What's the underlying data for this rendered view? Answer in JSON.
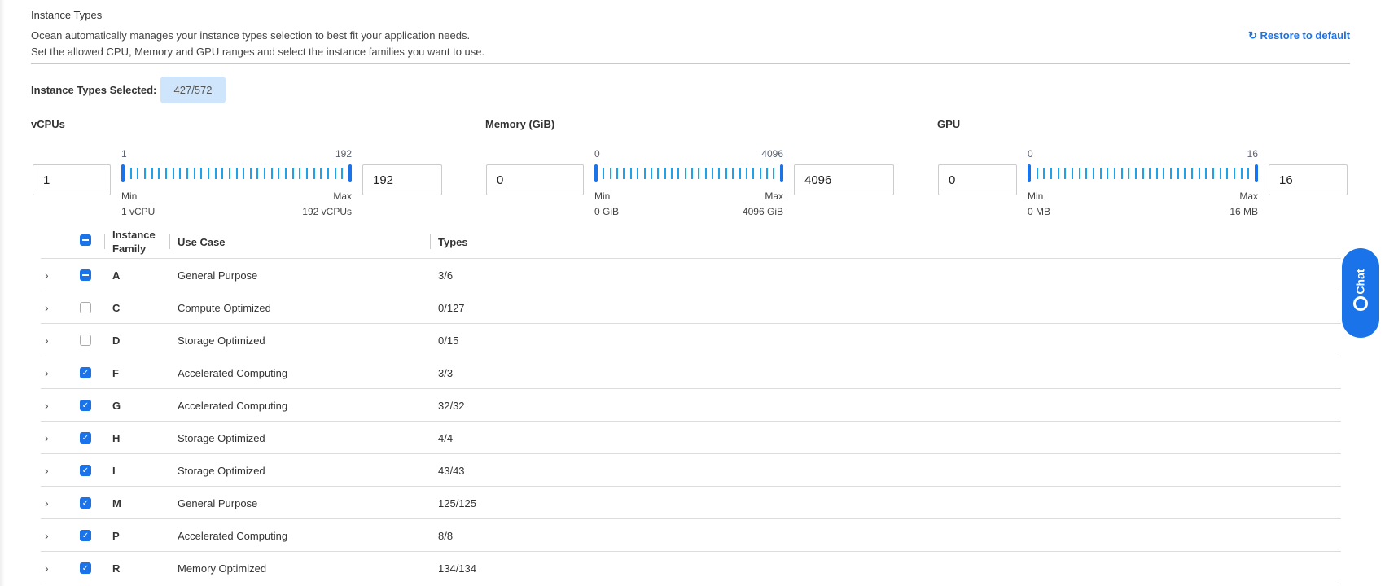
{
  "header": {
    "title": "Instance Types",
    "description": [
      "Ocean automatically manages your instance types selection to best fit your application needs.",
      "Set the allowed CPU, Memory and GPU ranges and select the instance families you want to use."
    ],
    "restore_label": "Restore to default",
    "restore_icon": "refresh-icon"
  },
  "selected": {
    "label": "Instance Types Selected:",
    "value": "427/572"
  },
  "ranges": [
    {
      "label": "vCPUs",
      "min_input": "1",
      "max_input": "192",
      "min_value": "1",
      "max_value": "192",
      "min_label": "Min",
      "max_label": "Max",
      "min_unit": "1 vCPU",
      "max_unit": "192 vCPUs"
    },
    {
      "label": "Memory (GiB)",
      "min_input": "0",
      "max_input": "4096",
      "min_value": "0",
      "max_value": "4096",
      "min_label": "Min",
      "max_label": "Max",
      "min_unit": "0 GiB",
      "max_unit": "4096 GiB"
    },
    {
      "label": "GPU",
      "min_input": "0",
      "max_input": "16",
      "min_value": "0",
      "max_value": "16",
      "min_label": "Min",
      "max_label": "Max",
      "min_unit": "0 MB",
      "max_unit": "16 MB"
    }
  ],
  "table": {
    "headers": {
      "family": "Instance Family",
      "use_case": "Use Case",
      "types": "Types"
    },
    "header_checkbox": "mixed",
    "rows": [
      {
        "family": "A",
        "use_case": "General Purpose",
        "types": "3/6",
        "state": "mixed"
      },
      {
        "family": "C",
        "use_case": "Compute Optimized",
        "types": "0/127",
        "state": "off"
      },
      {
        "family": "D",
        "use_case": "Storage Optimized",
        "types": "0/15",
        "state": "off"
      },
      {
        "family": "F",
        "use_case": "Accelerated Computing",
        "types": "3/3",
        "state": "on"
      },
      {
        "family": "G",
        "use_case": "Accelerated Computing",
        "types": "32/32",
        "state": "on"
      },
      {
        "family": "H",
        "use_case": "Storage Optimized",
        "types": "4/4",
        "state": "on"
      },
      {
        "family": "I",
        "use_case": "Storage Optimized",
        "types": "43/43",
        "state": "on"
      },
      {
        "family": "M",
        "use_case": "General Purpose",
        "types": "125/125",
        "state": "on"
      },
      {
        "family": "P",
        "use_case": "Accelerated Computing",
        "types": "8/8",
        "state": "on"
      },
      {
        "family": "R",
        "use_case": "Memory Optimized",
        "types": "134/134",
        "state": "on"
      }
    ]
  },
  "chat": {
    "label": "Chat"
  },
  "colors": {
    "accent": "#1a73e8",
    "badge_bg": "#cfe5fb",
    "tick": "#1fa2e8"
  }
}
